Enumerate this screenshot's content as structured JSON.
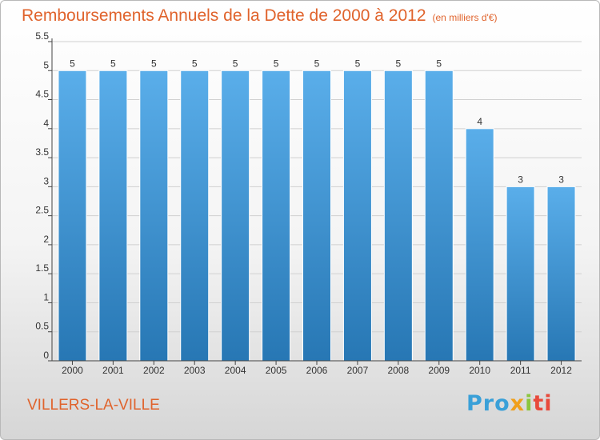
{
  "header": {
    "title": "Remboursements Annuels de la Dette de 2000 à 2012",
    "subtitle": "(en milliers d'€)"
  },
  "footer": {
    "commune": "VILLERS-LA-VILLE",
    "logo": {
      "p1": "Pro",
      "p2": "x",
      "p3": "i",
      "p4": "ti"
    }
  },
  "colors": {
    "title": "#e0632c",
    "bar_top": "#5aaeea",
    "bar_bottom": "#2777b4",
    "axis": "#444444",
    "grid": "#d0d0d0"
  },
  "chart_data": {
    "type": "bar",
    "title": "Remboursements Annuels de la Dette de 2000 à 2012",
    "subtitle": "(en milliers d'€)",
    "categories": [
      "2000",
      "2001",
      "2002",
      "2003",
      "2004",
      "2005",
      "2006",
      "2007",
      "2008",
      "2009",
      "2010",
      "2011",
      "2012"
    ],
    "values": [
      5,
      5,
      5,
      5,
      5,
      5,
      5,
      5,
      5,
      5,
      4,
      3,
      3
    ],
    "data_labels": [
      "5",
      "5",
      "5",
      "5",
      "5",
      "5",
      "5",
      "5",
      "5",
      "5",
      "4",
      "3",
      "3"
    ],
    "yticks": [
      0,
      0.5,
      1,
      1.5,
      2,
      2.5,
      3,
      3.5,
      4,
      4.5,
      5,
      5.5
    ],
    "ytick_labels": [
      "0",
      "0.5",
      "1",
      "1.5",
      "2",
      "2.5",
      "3",
      "3.5",
      "4",
      "4.5",
      "5",
      "5.5"
    ],
    "ylim": [
      0,
      5.5
    ],
    "grid": true
  }
}
